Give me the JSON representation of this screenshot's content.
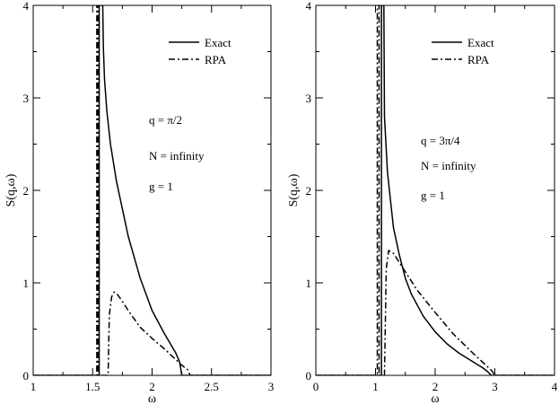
{
  "chart_data": [
    {
      "type": "line",
      "panel": "left",
      "xlabel": "ω",
      "ylabel": "S(q,ω)",
      "xlim": [
        1,
        3
      ],
      "ylim": [
        0,
        4
      ],
      "xticks": [
        1,
        1.5,
        2,
        2.5,
        3
      ],
      "xtick_labels": [
        "1",
        "1.5",
        "2",
        "2.5",
        "3"
      ],
      "yticks": [
        0,
        1,
        2,
        3,
        4
      ],
      "ytick_labels": [
        "0",
        "1",
        "2",
        "3",
        "4"
      ],
      "legend": {
        "position": "top-right",
        "entries": [
          "Exact",
          "RPA"
        ]
      },
      "annotations": [
        "q = π/2",
        "N = infinity",
        "g = 1"
      ],
      "series": [
        {
          "name": "Exact",
          "style": "solid",
          "x": [
            1.0,
            1.555,
            1.555,
            1.585,
            1.59,
            1.6,
            1.62,
            1.65,
            1.7,
            1.8,
            1.9,
            2.0,
            2.1,
            2.2,
            2.23,
            2.24,
            2.25,
            3.0
          ],
          "y": [
            0,
            0,
            4,
            4,
            3.55,
            3.2,
            2.85,
            2.5,
            2.1,
            1.5,
            1.05,
            0.7,
            0.46,
            0.24,
            0.15,
            0.08,
            0,
            0
          ]
        },
        {
          "name": "RPA",
          "style": "dashdot",
          "x": [
            1.0,
            1.535,
            1.535,
            1.545,
            1.545,
            1.63,
            1.64,
            1.66,
            1.68,
            1.7,
            1.75,
            1.8,
            1.9,
            2.0,
            2.1,
            2.2,
            2.25,
            2.3,
            2.32,
            3.0
          ],
          "y": [
            0,
            0,
            4,
            4,
            0,
            0,
            0.65,
            0.85,
            0.9,
            0.89,
            0.8,
            0.7,
            0.52,
            0.4,
            0.29,
            0.17,
            0.11,
            0.06,
            0,
            0
          ]
        }
      ]
    },
    {
      "type": "line",
      "panel": "right",
      "xlabel": "ω",
      "ylabel": "S(q,ω)",
      "xlim": [
        0,
        4
      ],
      "ylim": [
        0,
        4
      ],
      "xticks": [
        0,
        1,
        2,
        3,
        4
      ],
      "xtick_labels": [
        "0",
        "1",
        "2",
        "3",
        "4"
      ],
      "yticks": [
        0,
        1,
        2,
        3,
        4
      ],
      "ytick_labels": [
        "0",
        "1",
        "2",
        "3",
        "4"
      ],
      "legend": {
        "position": "top-right",
        "entries": [
          "Exact",
          "RPA"
        ]
      },
      "annotations": [
        "q = 3π/4",
        "N = infinity",
        "g = 1"
      ],
      "series": [
        {
          "name": "Exact",
          "style": "solid",
          "x": [
            0.0,
            1.1,
            1.1,
            1.14,
            1.15,
            1.2,
            1.3,
            1.4,
            1.5,
            1.6,
            1.8,
            2.0,
            2.2,
            2.4,
            2.6,
            2.8,
            2.88,
            2.94,
            4.0
          ],
          "y": [
            0,
            0,
            4,
            4,
            2.8,
            2.2,
            1.6,
            1.3,
            1.05,
            0.88,
            0.64,
            0.47,
            0.34,
            0.24,
            0.16,
            0.08,
            0.04,
            0,
            0
          ]
        },
        {
          "name": "RPA",
          "style": "dashdot",
          "x": [
            0.0,
            1.03,
            1.03,
            1.06,
            1.06,
            1.15,
            1.18,
            1.22,
            1.3,
            1.4,
            1.5,
            1.7,
            2.0,
            2.3,
            2.6,
            2.8,
            2.95,
            3.0,
            4.0
          ],
          "y": [
            0,
            0,
            4,
            4,
            0,
            0,
            1.15,
            1.35,
            1.32,
            1.22,
            1.12,
            0.92,
            0.68,
            0.45,
            0.26,
            0.14,
            0.05,
            0,
            0
          ]
        }
      ]
    }
  ]
}
